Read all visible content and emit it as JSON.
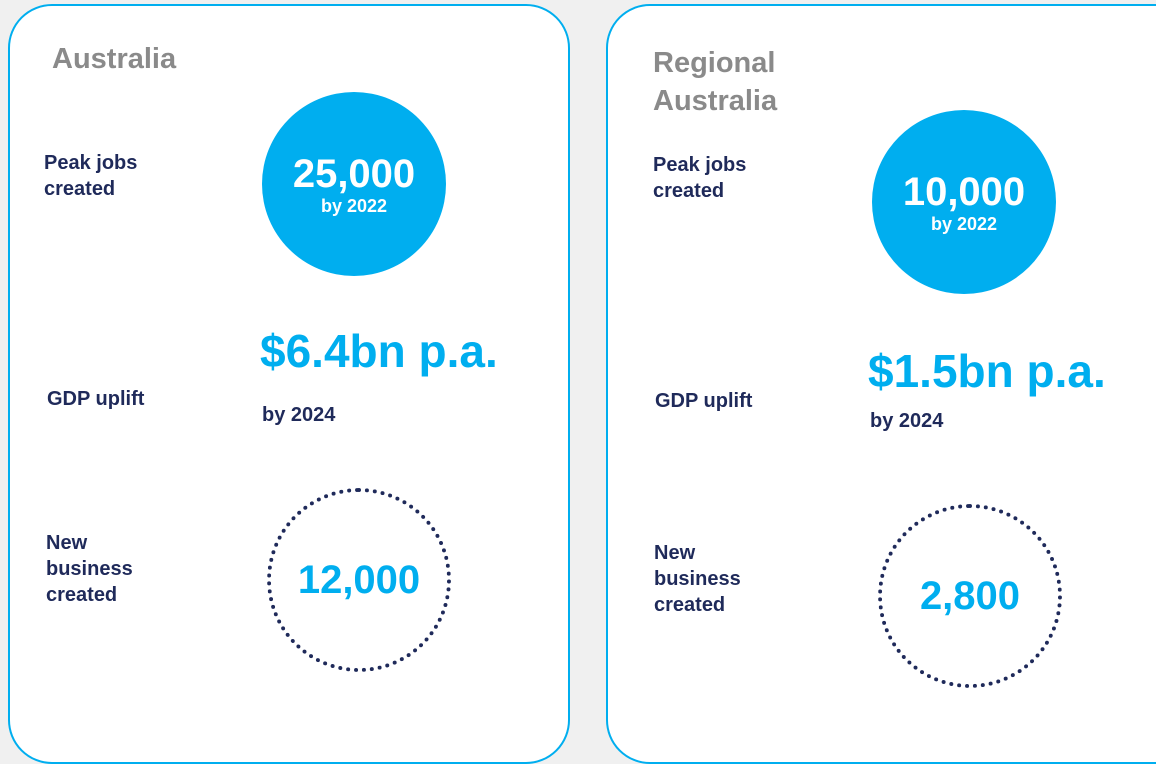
{
  "panels": [
    {
      "title": "Australia",
      "jobs": {
        "label": "Peak jobs created",
        "value": "25,000",
        "note": "by 2022"
      },
      "gdp": {
        "label": "GDP uplift",
        "value": "$6.4bn p.a.",
        "note": "by 2024"
      },
      "business": {
        "label": "New business created",
        "value": "12,000"
      }
    },
    {
      "title": "Regional Australia",
      "jobs": {
        "label": "Peak jobs created",
        "value": "10,000",
        "note": "by 2022"
      },
      "gdp": {
        "label": "GDP uplift",
        "value": "$1.5bn p.a.",
        "note": "by 2024"
      },
      "business": {
        "label": "New business created",
        "value": "2,800"
      }
    }
  ]
}
